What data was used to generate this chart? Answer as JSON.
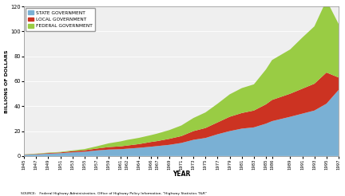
{
  "years": [
    1945,
    1947,
    1949,
    1951,
    1953,
    1955,
    1957,
    1959,
    1961,
    1962,
    1964,
    1966,
    1967,
    1969,
    1971,
    1973,
    1975,
    1977,
    1979,
    1981,
    1983,
    1985,
    1986,
    1989,
    1991,
    1993,
    1995,
    1997
  ],
  "state_vals": [
    1.0,
    1.4,
    1.9,
    2.3,
    3.0,
    3.5,
    4.5,
    5.2,
    5.5,
    5.9,
    6.6,
    7.5,
    8.0,
    9.0,
    10.5,
    13.0,
    14.5,
    17.5,
    20.0,
    22.0,
    23.0,
    26.0,
    28.0,
    31.5,
    34.0,
    36.5,
    42.0,
    53.0
  ],
  "local_vals": [
    0.2,
    0.3,
    0.5,
    0.6,
    0.9,
    1.1,
    1.5,
    2.0,
    2.3,
    2.5,
    3.0,
    3.8,
    4.0,
    4.8,
    5.5,
    7.0,
    8.0,
    9.5,
    11.5,
    12.5,
    13.5,
    15.5,
    17.0,
    18.5,
    20.0,
    21.5,
    25.0,
    10.0
  ],
  "federal_vals": [
    0.15,
    0.25,
    0.35,
    0.4,
    0.6,
    1.0,
    1.8,
    3.0,
    4.0,
    4.5,
    5.0,
    5.5,
    6.0,
    7.0,
    8.5,
    10.5,
    12.5,
    15.0,
    18.0,
    20.0,
    21.0,
    28.0,
    32.0,
    35.5,
    41.0,
    46.0,
    58.0,
    43.0
  ],
  "state_color": "#7ab0d4",
  "local_color": "#cc3322",
  "federal_color": "#99cc44",
  "ylim": [
    0,
    120
  ],
  "yticks": [
    0,
    20,
    40,
    60,
    80,
    100,
    120
  ],
  "ylabel": "BILLIONS OF DOLLARS",
  "xlabel": "YEAR",
  "source": "SOURCE:   Federal Highway Administration, Office of Highway Policy Information, \"Highway Statistics T&R\"",
  "legend_labels": [
    "STATE GOVERNMENT",
    "LOCAL GOVERNMENT",
    "FEDERAL GOVERNMENT"
  ],
  "bg_color": "#efefef"
}
